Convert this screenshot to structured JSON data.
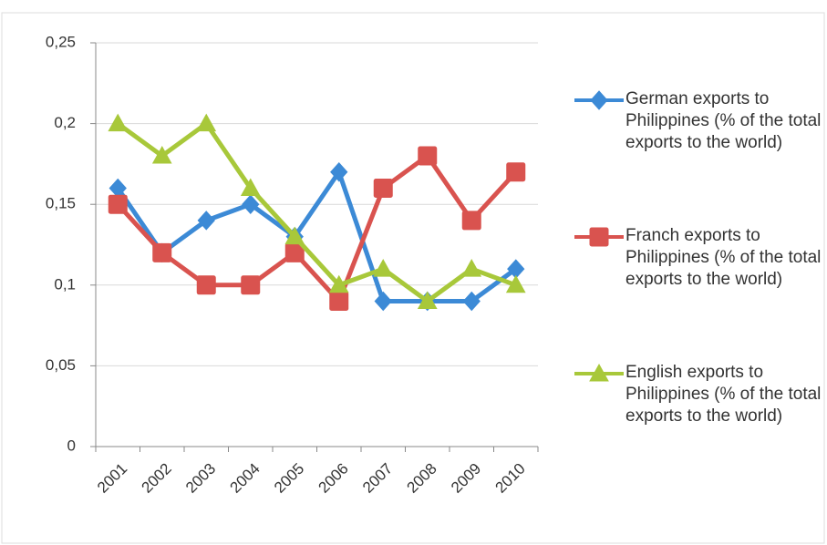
{
  "chart_data": {
    "type": "line",
    "categories": [
      "2001",
      "2002",
      "2003",
      "2004",
      "2005",
      "2006",
      "2007",
      "2008",
      "2009",
      "2010"
    ],
    "series": [
      {
        "name": "German exports to Philippines (% of the total exports to the world)",
        "color": "#3c8ad6",
        "marker": "diamond",
        "values": [
          0.16,
          0.12,
          0.14,
          0.15,
          0.13,
          0.17,
          0.09,
          0.09,
          0.09,
          0.11
        ]
      },
      {
        "name": "Franch exports to Philippines (% of the total exports to the world)",
        "color": "#d9534f",
        "marker": "square",
        "values": [
          0.15,
          0.12,
          0.1,
          0.1,
          0.12,
          0.09,
          0.16,
          0.18,
          0.14,
          0.17
        ]
      },
      {
        "name": "English exports to Philippines (% of the total exports to the world)",
        "color": "#a8c83a",
        "marker": "triangle",
        "values": [
          0.2,
          0.18,
          0.2,
          0.16,
          0.13,
          0.1,
          0.11,
          0.09,
          0.11,
          0.1
        ]
      }
    ],
    "ylim": [
      0,
      0.25
    ],
    "yticks": [
      0,
      {
        "value": 0.05,
        "label": "0,05"
      },
      {
        "value": 0.1,
        "label": "0,1"
      },
      {
        "value": 0.15,
        "label": "0,15"
      },
      {
        "value": 0.2,
        "label": "0,2"
      },
      {
        "value": 0.25,
        "label": "0,25"
      }
    ],
    "grid": true,
    "legend": "right"
  }
}
